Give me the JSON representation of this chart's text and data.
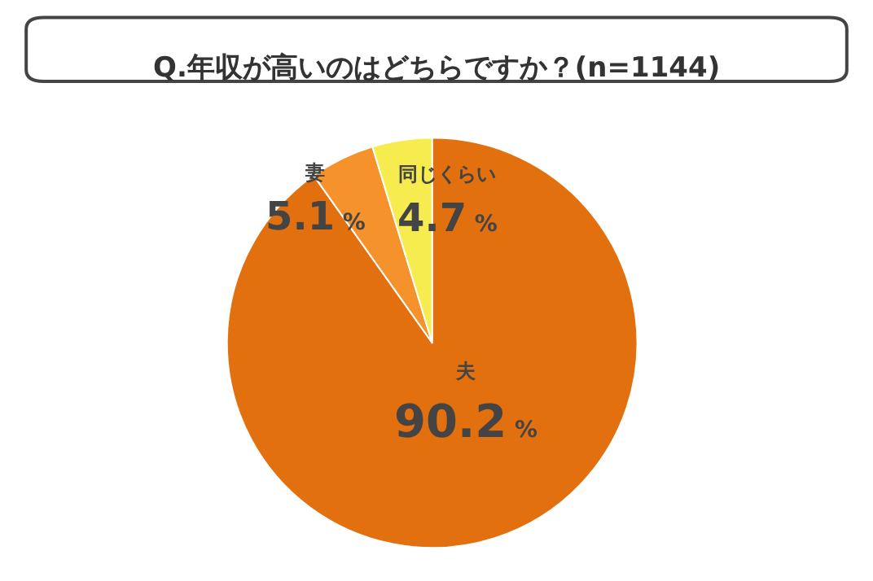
{
  "chart_data": {
    "type": "pie",
    "title": "Q.年収が高いのはどちらですか？(n=1144)",
    "categories": [
      "夫",
      "妻",
      "同じくらい"
    ],
    "values": [
      90.2,
      5.1,
      4.7
    ],
    "colors": [
      "#e2700f",
      "#f5922b",
      "#f7ec4f"
    ],
    "value_labels": [
      "90.2%",
      "5.1%",
      "4.7%"
    ],
    "legend": false
  }
}
